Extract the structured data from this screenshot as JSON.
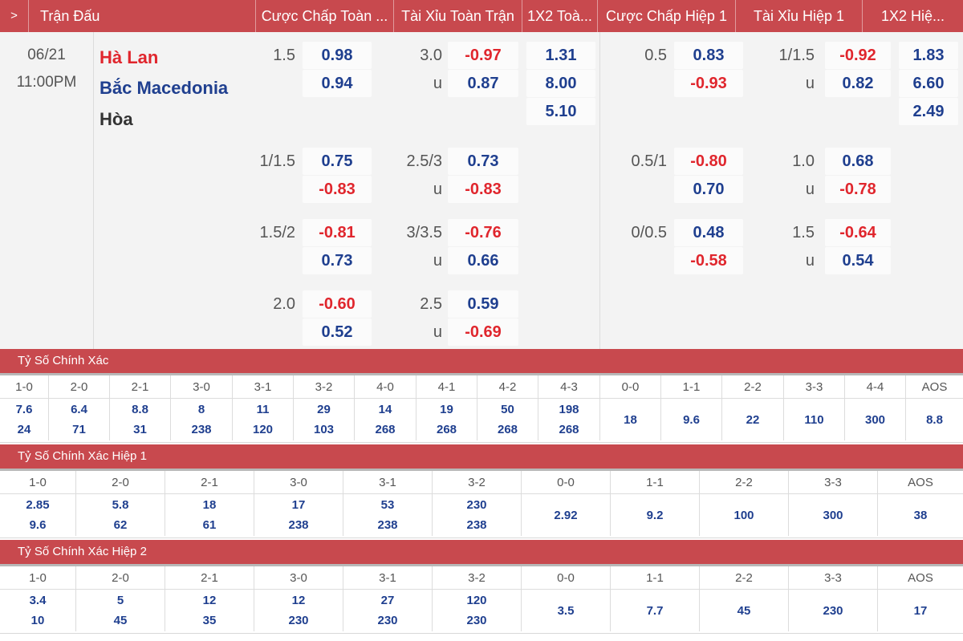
{
  "header": {
    "toggle_glyph": ">",
    "match_col": "Trận Đấu",
    "cols": [
      "Cược Chấp Toàn ...",
      "Tài Xỉu Toàn Trận",
      "1X2 Toà...",
      "Cược Chấp Hiệp 1",
      "Tài Xỉu Hiệp 1",
      "1X2 Hiệ..."
    ]
  },
  "match": {
    "date": "06/21",
    "time": "11:00PM",
    "home": "Hà Lan",
    "away": "Bắc Macedonia",
    "draw": "Hòa",
    "under_marker": "u",
    "full_handicap": [
      {
        "line": "1.5",
        "home": "0.98",
        "away": "0.94"
      },
      {
        "line": "1/1.5",
        "home": "0.75",
        "away": "-0.83"
      },
      {
        "line": "1.5/2",
        "home": "-0.81",
        "away": "0.73"
      },
      {
        "line": "2.0",
        "home": "-0.60",
        "away": "0.52"
      }
    ],
    "full_overunder": [
      {
        "line": "3.0",
        "over": "-0.97",
        "under": "0.87"
      },
      {
        "line": "2.5/3",
        "over": "0.73",
        "under": "-0.83"
      },
      {
        "line": "3/3.5",
        "over": "-0.76",
        "under": "0.66"
      },
      {
        "line": "2.5",
        "over": "0.59",
        "under": "-0.69"
      }
    ],
    "full_1x2": {
      "home": "1.31",
      "away": "8.00",
      "draw": "5.10"
    },
    "h1_handicap": [
      {
        "line": "0.5",
        "home": "0.83",
        "away": "-0.93"
      },
      {
        "line": "0.5/1",
        "home": "-0.80",
        "away": "0.70"
      },
      {
        "line": "0/0.5",
        "home": "0.48",
        "away": "-0.58"
      }
    ],
    "h1_overunder": [
      {
        "line": "1/1.5",
        "over": "-0.92",
        "under": "0.82"
      },
      {
        "line": "1.0",
        "over": "0.68",
        "under": "-0.78"
      },
      {
        "line": "1.5",
        "over": "-0.64",
        "under": "0.54"
      }
    ],
    "h1_1x2": {
      "home": "1.83",
      "away": "6.60",
      "draw": "2.49"
    }
  },
  "correct_score": {
    "title": "Tỷ Số Chính Xác",
    "cols": [
      {
        "score": "1-0",
        "top": "7.6",
        "bottom": "24"
      },
      {
        "score": "2-0",
        "top": "6.4",
        "bottom": "71"
      },
      {
        "score": "2-1",
        "top": "8.8",
        "bottom": "31"
      },
      {
        "score": "3-0",
        "top": "8",
        "bottom": "238"
      },
      {
        "score": "3-1",
        "top": "11",
        "bottom": "120"
      },
      {
        "score": "3-2",
        "top": "29",
        "bottom": "103"
      },
      {
        "score": "4-0",
        "top": "14",
        "bottom": "268"
      },
      {
        "score": "4-1",
        "top": "19",
        "bottom": "268"
      },
      {
        "score": "4-2",
        "top": "50",
        "bottom": "268"
      },
      {
        "score": "4-3",
        "top": "198",
        "bottom": "268"
      },
      {
        "score": "0-0",
        "top": "18",
        "bottom": ""
      },
      {
        "score": "1-1",
        "top": "9.6",
        "bottom": ""
      },
      {
        "score": "2-2",
        "top": "22",
        "bottom": ""
      },
      {
        "score": "3-3",
        "top": "110",
        "bottom": ""
      },
      {
        "score": "4-4",
        "top": "300",
        "bottom": ""
      },
      {
        "score": "AOS",
        "top": "8.8",
        "bottom": ""
      }
    ]
  },
  "correct_score_h1": {
    "title": "Tỷ Số Chính Xác Hiệp 1",
    "cols": [
      {
        "score": "1-0",
        "top": "2.85",
        "bottom": "9.6"
      },
      {
        "score": "2-0",
        "top": "5.8",
        "bottom": "62"
      },
      {
        "score": "2-1",
        "top": "18",
        "bottom": "61"
      },
      {
        "score": "3-0",
        "top": "17",
        "bottom": "238"
      },
      {
        "score": "3-1",
        "top": "53",
        "bottom": "238"
      },
      {
        "score": "3-2",
        "top": "230",
        "bottom": "238"
      },
      {
        "score": "0-0",
        "top": "2.92",
        "bottom": ""
      },
      {
        "score": "1-1",
        "top": "9.2",
        "bottom": ""
      },
      {
        "score": "2-2",
        "top": "100",
        "bottom": ""
      },
      {
        "score": "3-3",
        "top": "300",
        "bottom": ""
      },
      {
        "score": "AOS",
        "top": "38",
        "bottom": ""
      }
    ]
  },
  "correct_score_h2": {
    "title": "Tỷ Số Chính Xác Hiệp 2",
    "cols": [
      {
        "score": "1-0",
        "top": "3.4",
        "bottom": "10"
      },
      {
        "score": "2-0",
        "top": "5",
        "bottom": "45"
      },
      {
        "score": "2-1",
        "top": "12",
        "bottom": "35"
      },
      {
        "score": "3-0",
        "top": "12",
        "bottom": "230"
      },
      {
        "score": "3-1",
        "top": "27",
        "bottom": "230"
      },
      {
        "score": "3-2",
        "top": "120",
        "bottom": "230"
      },
      {
        "score": "0-0",
        "top": "3.5",
        "bottom": ""
      },
      {
        "score": "1-1",
        "top": "7.7",
        "bottom": ""
      },
      {
        "score": "2-2",
        "top": "45",
        "bottom": ""
      },
      {
        "score": "3-3",
        "top": "230",
        "bottom": ""
      },
      {
        "score": "AOS",
        "top": "17",
        "bottom": ""
      }
    ]
  }
}
